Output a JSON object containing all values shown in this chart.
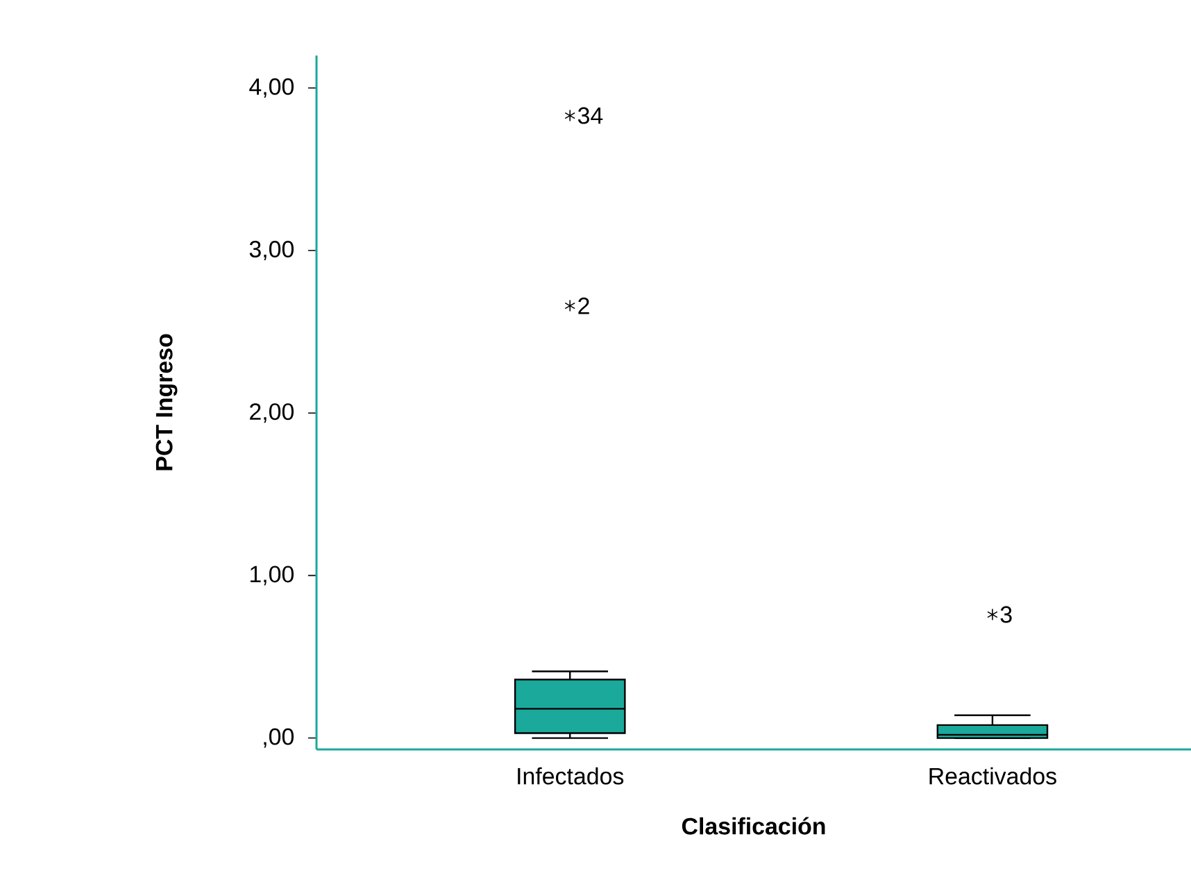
{
  "chart_data": {
    "type": "box",
    "xlabel": "Clasificación",
    "ylabel": "PCT Ingreso",
    "categories": [
      "Infectados",
      "Reactivados"
    ],
    "boxes": [
      {
        "low": 0,
        "q1": 0.03,
        "median": 0.18,
        "q3": 0.36,
        "high": 0.41,
        "outliers": [
          3.83,
          2.66
        ]
      },
      {
        "low": 0,
        "q1": 0.0,
        "median": 0.02,
        "q3": 0.08,
        "high": 0.14,
        "outliers": [
          0.76
        ]
      }
    ],
    "color": "#1aa99a",
    "ylim": [
      -0.07,
      4.2
    ],
    "yticks": [
      {
        "value": 0,
        "label": ",00"
      },
      {
        "value": 1,
        "label": "1,00"
      },
      {
        "value": 2,
        "label": "2,00"
      },
      {
        "value": 3,
        "label": "3,00"
      },
      {
        "value": 4,
        "label": "4,00"
      }
    ],
    "annotations": [
      "34",
      "2",
      "3"
    ],
    "grid": false,
    "marker": "star"
  }
}
